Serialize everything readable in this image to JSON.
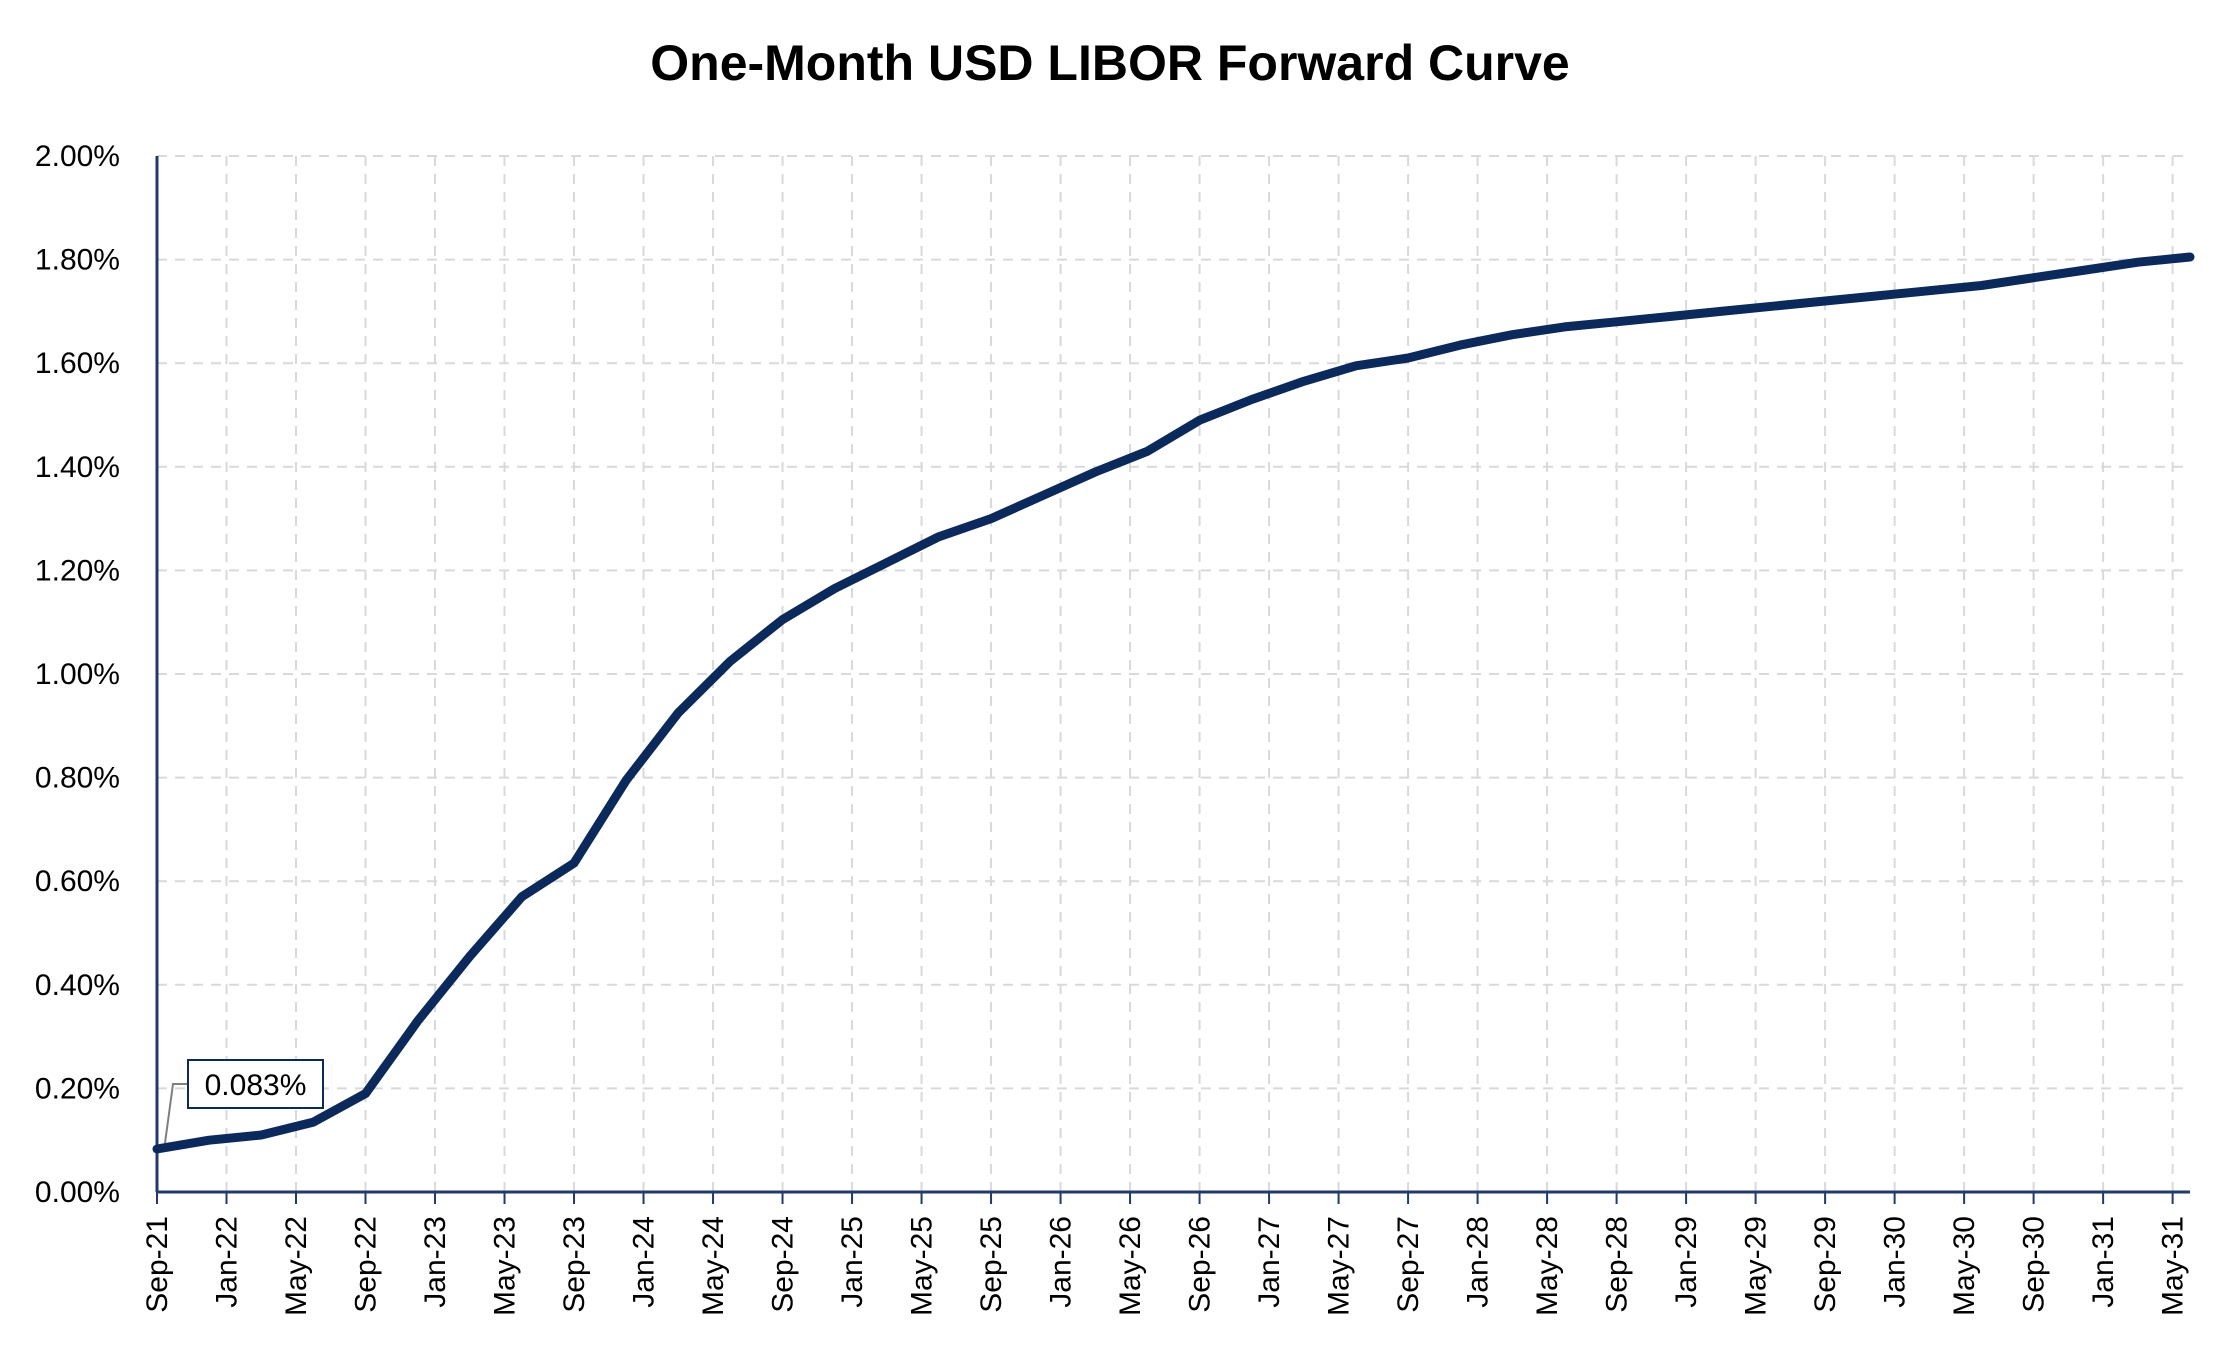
{
  "chart_data": {
    "type": "line",
    "title": "One-Month USD LIBOR Forward Curve",
    "xlabel": "",
    "ylabel": "",
    "ylim": [
      0,
      2.0
    ],
    "y_ticks": [
      "0.00%",
      "0.20%",
      "0.40%",
      "0.60%",
      "0.80%",
      "1.00%",
      "1.20%",
      "1.40%",
      "1.60%",
      "1.80%",
      "2.00%"
    ],
    "x_ticks": [
      "Sep-21",
      "Jan-22",
      "May-22",
      "Sep-22",
      "Jan-23",
      "May-23",
      "Sep-23",
      "Jan-24",
      "May-24",
      "Sep-24",
      "Jan-25",
      "May-25",
      "Sep-25",
      "Jan-26",
      "May-26",
      "Sep-26",
      "Jan-27",
      "May-27",
      "Sep-27",
      "Jan-28",
      "May-28",
      "Sep-28",
      "Jan-29",
      "May-29",
      "Sep-29",
      "Jan-30",
      "May-30",
      "Sep-30",
      "Jan-31",
      "May-31"
    ],
    "grid": true,
    "legend": "none",
    "series": [
      {
        "color": "#0b2a5b",
        "x": [
          "Sep-21",
          "Dec-21",
          "Mar-22",
          "Jun-22",
          "Sep-22",
          "Dec-22",
          "Mar-23",
          "Jun-23",
          "Sep-23",
          "Dec-23",
          "Mar-24",
          "Jun-24",
          "Sep-24",
          "Dec-24",
          "Mar-25",
          "Jun-25",
          "Sep-25",
          "Dec-25",
          "Mar-26",
          "Jun-26",
          "Sep-26",
          "Dec-26",
          "Mar-27",
          "Jun-27",
          "Sep-27",
          "Dec-27",
          "Mar-28",
          "Jun-28",
          "Sep-28",
          "Dec-28",
          "Mar-29",
          "Jun-29",
          "Sep-29",
          "Dec-29",
          "Mar-30",
          "Jun-30",
          "Sep-30",
          "Dec-30",
          "Mar-31",
          "Jun-31"
        ],
        "values": [
          0.083,
          0.1,
          0.11,
          0.135,
          0.19,
          0.33,
          0.455,
          0.57,
          0.635,
          0.795,
          0.925,
          1.025,
          1.105,
          1.165,
          1.215,
          1.265,
          1.3,
          1.345,
          1.39,
          1.43,
          1.49,
          1.53,
          1.565,
          1.595,
          1.61,
          1.635,
          1.655,
          1.67,
          1.68,
          1.69,
          1.7,
          1.71,
          1.72,
          1.73,
          1.74,
          1.75,
          1.765,
          1.78,
          1.795,
          1.805
        ]
      }
    ],
    "annotations": [
      {
        "text": "0.083%",
        "x": "Sep-21",
        "y": 0.083
      }
    ],
    "colors": {
      "line": "#0b2a5b",
      "axis": "#1f3a6b",
      "grid": "#d9d9d9",
      "annotation_border": "#0b2a5b",
      "leader": "#7f7f7f"
    }
  }
}
